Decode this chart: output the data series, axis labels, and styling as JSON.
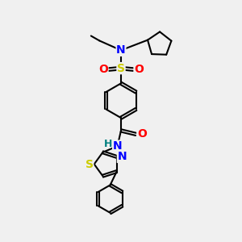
{
  "bg_color": "#f0f0f0",
  "atom_colors": {
    "C": "#000000",
    "N": "#0000ff",
    "O": "#ff0000",
    "S_sulfonyl": "#cccc00",
    "S_thiazole": "#cccc00",
    "H": "#008080"
  },
  "bond_color": "#000000",
  "bond_width": 1.5,
  "figsize": [
    3.0,
    3.0
  ],
  "dpi": 100,
  "xlim": [
    0,
    10
  ],
  "ylim": [
    0,
    10
  ]
}
